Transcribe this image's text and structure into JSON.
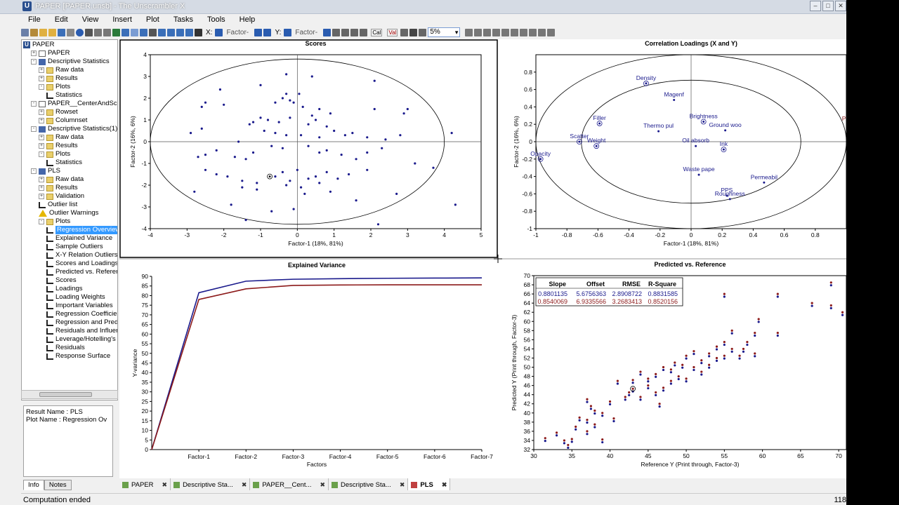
{
  "window": {
    "title": "PAPER [PAPER.unsb] - The Unscrambler X",
    "controls": [
      "–",
      "□",
      "✕"
    ]
  },
  "menu": [
    "File",
    "Edit",
    "View",
    "Insert",
    "Plot",
    "Tasks",
    "Tools",
    "Help"
  ],
  "toolbar": {
    "x_label": "X:",
    "x_value": "Factor-",
    "y_label": "Y:",
    "y_value": "Factor-",
    "zoom": "5%",
    "cal": "Cal",
    "val": "Val"
  },
  "tree": [
    {
      "label": "PAPER",
      "indent": 0,
      "icon": "u-icon",
      "exp": ""
    },
    {
      "label": "PAPER",
      "indent": 1,
      "icon": "doc",
      "exp": "+"
    },
    {
      "label": "Descriptive Statistics",
      "indent": 1,
      "icon": "stat",
      "exp": "-"
    },
    {
      "label": "Raw data",
      "indent": 2,
      "icon": "folder",
      "exp": "+"
    },
    {
      "label": "Results",
      "indent": 2,
      "icon": "folder",
      "exp": "+"
    },
    {
      "label": "Plots",
      "indent": 2,
      "icon": "folder",
      "exp": "-"
    },
    {
      "label": "Statistics",
      "indent": 3,
      "icon": "plot",
      "exp": ""
    },
    {
      "label": "PAPER__CenterAndScale",
      "indent": 1,
      "icon": "doc",
      "exp": "-"
    },
    {
      "label": "Rowset",
      "indent": 2,
      "icon": "folder",
      "exp": "+"
    },
    {
      "label": "Columnset",
      "indent": 2,
      "icon": "folder",
      "exp": "+"
    },
    {
      "label": "Descriptive Statistics(1)",
      "indent": 1,
      "icon": "stat",
      "exp": "-"
    },
    {
      "label": "Raw data",
      "indent": 2,
      "icon": "folder",
      "exp": "+"
    },
    {
      "label": "Results",
      "indent": 2,
      "icon": "folder",
      "exp": "+"
    },
    {
      "label": "Plots",
      "indent": 2,
      "icon": "folder",
      "exp": "-"
    },
    {
      "label": "Statistics",
      "indent": 3,
      "icon": "plot",
      "exp": ""
    },
    {
      "label": "PLS",
      "indent": 1,
      "icon": "stat",
      "exp": "-"
    },
    {
      "label": "Raw data",
      "indent": 2,
      "icon": "folder",
      "exp": "+"
    },
    {
      "label": "Results",
      "indent": 2,
      "icon": "folder",
      "exp": "+"
    },
    {
      "label": "Validation",
      "indent": 2,
      "icon": "folder",
      "exp": "+"
    },
    {
      "label": "Outlier list",
      "indent": 2,
      "icon": "plot",
      "exp": ""
    },
    {
      "label": "Outlier Warnings",
      "indent": 2,
      "icon": "warn",
      "exp": ""
    },
    {
      "label": "Plots",
      "indent": 2,
      "icon": "folder",
      "exp": "-"
    },
    {
      "label": "Regression Overview",
      "indent": 3,
      "icon": "plot",
      "exp": "",
      "selected": true
    },
    {
      "label": "Explained Variance",
      "indent": 3,
      "icon": "plot",
      "exp": ""
    },
    {
      "label": "Sample Outliers",
      "indent": 3,
      "icon": "plot",
      "exp": ""
    },
    {
      "label": "X-Y Relation Outliers",
      "indent": 3,
      "icon": "plot",
      "exp": ""
    },
    {
      "label": "Scores and Loadings",
      "indent": 3,
      "icon": "plot",
      "exp": ""
    },
    {
      "label": "Predicted vs. Reference",
      "indent": 3,
      "icon": "plot",
      "exp": ""
    },
    {
      "label": "Scores",
      "indent": 3,
      "icon": "plot",
      "exp": ""
    },
    {
      "label": "Loadings",
      "indent": 3,
      "icon": "plot",
      "exp": ""
    },
    {
      "label": "Loading Weights",
      "indent": 3,
      "icon": "plot",
      "exp": ""
    },
    {
      "label": "Important Variables",
      "indent": 3,
      "icon": "plot",
      "exp": ""
    },
    {
      "label": "Regression Coefficients",
      "indent": 3,
      "icon": "plot",
      "exp": ""
    },
    {
      "label": "Regression and Prediction",
      "indent": 3,
      "icon": "plot",
      "exp": ""
    },
    {
      "label": "Residuals and Influence",
      "indent": 3,
      "icon": "plot",
      "exp": ""
    },
    {
      "label": "Leverage/Hotelling's",
      "indent": 3,
      "icon": "plot",
      "exp": ""
    },
    {
      "label": "Residuals",
      "indent": 3,
      "icon": "plot",
      "exp": ""
    },
    {
      "label": "Response Surface",
      "indent": 3,
      "icon": "plot",
      "exp": ""
    }
  ],
  "info": {
    "result_name": "Result Name : PLS",
    "plot_name": "Plot Name : Regression Ov",
    "tabs": [
      "Info",
      "Notes"
    ]
  },
  "doc_tabs": [
    {
      "label": "PAPER",
      "active": false
    },
    {
      "label": "Descriptive Sta...",
      "active": false
    },
    {
      "label": "PAPER__Cent...",
      "active": false
    },
    {
      "label": "Descriptive Sta...",
      "active": false
    },
    {
      "label": "PLS",
      "active": true
    }
  ],
  "status": {
    "left": "Computation ended",
    "right": "118"
  },
  "chart_data": [
    {
      "type": "scatter",
      "title": "Scores",
      "xlabel": "Factor-1 (18%, 81%)",
      "ylabel": "Factor-2 (16%, 6%)",
      "xlim": [
        -4,
        5
      ],
      "ylim": [
        -4,
        4
      ],
      "xticks": [
        -4,
        -3,
        -2,
        -1,
        0,
        1,
        2,
        3,
        4,
        5
      ],
      "yticks": [
        -4,
        -3,
        -2,
        -1,
        0,
        1,
        2,
        3,
        4
      ],
      "ellipse": {
        "rx": 4.0,
        "ry": 3.8
      },
      "highlight": [
        [
          -0.75,
          -1.6
        ]
      ],
      "points": [
        [
          -0.3,
          3.1
        ],
        [
          0.4,
          3.0
        ],
        [
          2.1,
          2.8
        ],
        [
          -2.1,
          2.4
        ],
        [
          -1.0,
          2.6
        ],
        [
          -2.5,
          1.8
        ],
        [
          -2.6,
          1.6
        ],
        [
          -2.0,
          1.7
        ],
        [
          -0.3,
          2.2
        ],
        [
          -0.6,
          1.8
        ],
        [
          -0.2,
          1.9
        ],
        [
          0.05,
          2.2
        ],
        [
          -0.4,
          2.0
        ],
        [
          -0.1,
          1.8
        ],
        [
          0.15,
          1.6
        ],
        [
          0.6,
          1.5
        ],
        [
          0.9,
          1.3
        ],
        [
          2.1,
          1.5
        ],
        [
          2.9,
          1.3
        ],
        [
          3.0,
          1.5
        ],
        [
          -1.0,
          1.1
        ],
        [
          -1.2,
          0.9
        ],
        [
          -1.3,
          0.8
        ],
        [
          -0.8,
          1.0
        ],
        [
          -0.5,
          0.9
        ],
        [
          -0.2,
          1.1
        ],
        [
          0.3,
          0.8
        ],
        [
          0.4,
          1.2
        ],
        [
          0.5,
          1.0
        ],
        [
          0.8,
          0.7
        ],
        [
          -2.6,
          0.6
        ],
        [
          -2.9,
          0.4
        ],
        [
          -0.9,
          0.5
        ],
        [
          -0.6,
          0.4
        ],
        [
          -0.3,
          0.3
        ],
        [
          0.1,
          0.3
        ],
        [
          0.6,
          0.2
        ],
        [
          1.0,
          0.5
        ],
        [
          1.3,
          0.3
        ],
        [
          1.5,
          0.4
        ],
        [
          1.9,
          0.2
        ],
        [
          2.4,
          0.1
        ],
        [
          2.8,
          0.3
        ],
        [
          4.2,
          0.4
        ],
        [
          -1.6,
          0.0
        ],
        [
          -1.2,
          -0.5
        ],
        [
          -1.7,
          -0.7
        ],
        [
          -1.4,
          -0.8
        ],
        [
          -2.2,
          -0.4
        ],
        [
          -2.5,
          -0.6
        ],
        [
          -2.7,
          -0.7
        ],
        [
          -0.7,
          -0.2
        ],
        [
          -0.4,
          -0.3
        ],
        [
          0.3,
          -0.2
        ],
        [
          0.6,
          -0.5
        ],
        [
          0.8,
          -0.4
        ],
        [
          1.2,
          -0.6
        ],
        [
          1.6,
          -0.8
        ],
        [
          1.9,
          -0.5
        ],
        [
          2.3,
          -0.3
        ],
        [
          3.2,
          -1.0
        ],
        [
          -2.5,
          -1.3
        ],
        [
          -2.2,
          -1.5
        ],
        [
          -1.9,
          -1.6
        ],
        [
          -1.5,
          -1.8
        ],
        [
          -1.1,
          -1.9
        ],
        [
          -0.6,
          -1.6
        ],
        [
          -0.4,
          -1.4
        ],
        [
          -0.2,
          -1.8
        ],
        [
          0.0,
          -1.3
        ],
        [
          0.3,
          -1.7
        ],
        [
          0.5,
          -1.6
        ],
        [
          0.6,
          -1.9
        ],
        [
          0.1,
          -2.1
        ],
        [
          0.8,
          -1.4
        ],
        [
          1.1,
          -1.7
        ],
        [
          1.4,
          -1.5
        ],
        [
          1.9,
          -1.3
        ],
        [
          -2.8,
          -2.3
        ],
        [
          -1.5,
          -2.1
        ],
        [
          -1.1,
          -2.2
        ],
        [
          -0.3,
          -2.0
        ],
        [
          0.2,
          -2.4
        ],
        [
          0.9,
          -2.3
        ],
        [
          1.6,
          -2.7
        ],
        [
          2.7,
          -2.4
        ],
        [
          3.7,
          -1.2
        ],
        [
          4.3,
          -2.9
        ],
        [
          -1.8,
          -2.9
        ],
        [
          -1.4,
          -3.6
        ],
        [
          2.2,
          -3.8
        ],
        [
          -0.7,
          -3.2
        ],
        [
          -0.1,
          -3.1
        ]
      ]
    },
    {
      "type": "scatter",
      "title": "Correlation Loadings (X and Y)",
      "xlabel": "Factor-1 (18%, 81%)",
      "ylabel": "Factor-2 (16%, 6%)",
      "xlim": [
        -1,
        1
      ],
      "ylim": [
        -1,
        1
      ],
      "xticks": [
        -1,
        -0.8,
        -0.6,
        -0.4,
        -0.2,
        0,
        0.2,
        0.4,
        0.6,
        0.8
      ],
      "yticks": [
        -1,
        -0.8,
        -0.6,
        -0.4,
        -0.2,
        0,
        0.2,
        0.4,
        0.6,
        0.8
      ],
      "labels": [
        {
          "name": "Density",
          "x": -0.29,
          "y": 0.67,
          "ring": true
        },
        {
          "name": "Magenf",
          "x": -0.11,
          "y": 0.48,
          "ring": false
        },
        {
          "name": "Filler",
          "x": -0.59,
          "y": 0.21,
          "ring": true
        },
        {
          "name": "Thermo pul",
          "x": -0.21,
          "y": 0.12,
          "ring": false
        },
        {
          "name": "Brightness",
          "x": 0.08,
          "y": 0.23,
          "ring": true
        },
        {
          "name": "Ground woo",
          "x": 0.22,
          "y": 0.13,
          "ring": false
        },
        {
          "name": "Scatter",
          "x": -0.72,
          "y": 0.0,
          "ring": true
        },
        {
          "name": "Weight",
          "x": -0.61,
          "y": -0.05,
          "ring": true
        },
        {
          "name": "Oil absorb",
          "x": 0.03,
          "y": -0.05,
          "ring": false
        },
        {
          "name": "Ink",
          "x": 0.21,
          "y": -0.09,
          "ring": true
        },
        {
          "name": "Opacity",
          "x": -0.97,
          "y": -0.2,
          "ring": true
        },
        {
          "name": "Waste pape",
          "x": 0.05,
          "y": -0.38,
          "ring": false
        },
        {
          "name": "Permeabil",
          "x": 0.47,
          "y": -0.47,
          "ring": false
        },
        {
          "name": "PPS",
          "x": 0.23,
          "y": -0.62,
          "ring": false
        },
        {
          "name": "Roughness",
          "x": 0.25,
          "y": -0.66,
          "ring": false
        },
        {
          "name": "Print thro",
          "x": 1.05,
          "y": 0.2,
          "ring": false
        }
      ]
    },
    {
      "type": "line",
      "title": "Explained Variance",
      "xlabel": "Factors",
      "ylabel": "Y-variance",
      "categories": [
        "",
        "Factor-1",
        "Factor-2",
        "Factor-3",
        "Factor-4",
        "Factor-5",
        "Factor-6",
        "Factor-7"
      ],
      "ylim": [
        0,
        90
      ],
      "yticks": [
        0,
        5,
        10,
        15,
        20,
        25,
        30,
        35,
        40,
        45,
        50,
        55,
        60,
        65,
        70,
        75,
        80,
        85,
        90
      ],
      "series": [
        {
          "color": "#1a1a8c",
          "values": [
            0,
            81.5,
            87.5,
            88.5,
            88.8,
            89.0,
            89.1,
            89.2
          ]
        },
        {
          "color": "#8c1a1a",
          "values": [
            0,
            78.0,
            83.5,
            85.3,
            85.5,
            85.6,
            85.6,
            85.6
          ]
        }
      ]
    },
    {
      "type": "scatter",
      "title": "Predicted vs. Reference",
      "xlabel": "Reference Y (Print through, Factor-3)",
      "ylabel": "Predicted Y (Print through, Factor-3)",
      "xlim": [
        30,
        71
      ],
      "ylim": [
        32,
        70
      ],
      "xticks": [
        30,
        35,
        40,
        45,
        50,
        55,
        60,
        65,
        70
      ],
      "yticks": [
        32,
        34,
        36,
        38,
        40,
        42,
        44,
        46,
        48,
        50,
        52,
        54,
        56,
        58,
        60,
        62,
        64,
        66,
        68,
        70
      ],
      "table": {
        "headers": [
          "Slope",
          "Offset",
          "RMSE",
          "R-Square"
        ],
        "rows": [
          {
            "color": "#1a1a8c",
            "values": [
              "0.8801135",
              "5.6756363",
              "2.8908722",
              "0.8831585"
            ]
          },
          {
            "color": "#8c1a1a",
            "values": [
              "0.8540069",
              "6.9335566",
              "3.2683413",
              "0.8520156"
            ]
          }
        ]
      },
      "highlight": [
        [
          43,
          45.3
        ]
      ],
      "points": [
        [
          31.5,
          34.5
        ],
        [
          33,
          35.7
        ],
        [
          34,
          34.0
        ],
        [
          34.5,
          33.0
        ],
        [
          35,
          34.3
        ],
        [
          35.5,
          37.0
        ],
        [
          36,
          39.0
        ],
        [
          37,
          36.0
        ],
        [
          37,
          38.5
        ],
        [
          37.5,
          41.5
        ],
        [
          37,
          43.0
        ],
        [
          38,
          37.5
        ],
        [
          38,
          40.5
        ],
        [
          39,
          34.2
        ],
        [
          39,
          40.0
        ],
        [
          40,
          42.5
        ],
        [
          40.5,
          38.8
        ],
        [
          41,
          47.0
        ],
        [
          42,
          43.5
        ],
        [
          42.5,
          44.5
        ],
        [
          43,
          45.3
        ],
        [
          43,
          47.2
        ],
        [
          44,
          43.5
        ],
        [
          44,
          49.0
        ],
        [
          45,
          46.0
        ],
        [
          45,
          47.5
        ],
        [
          46,
          48.5
        ],
        [
          46,
          44.5
        ],
        [
          46.5,
          42.0
        ],
        [
          47,
          45.5
        ],
        [
          47,
          50.0
        ],
        [
          48,
          47.0
        ],
        [
          48,
          49.5
        ],
        [
          48.5,
          51.0
        ],
        [
          49,
          48.0
        ],
        [
          49.5,
          50.5
        ],
        [
          50,
          47.5
        ],
        [
          50,
          52.5
        ],
        [
          51,
          50.0
        ],
        [
          51,
          53.5
        ],
        [
          52,
          51.5
        ],
        [
          52,
          49.0
        ],
        [
          53,
          53.0
        ],
        [
          53,
          50.5
        ],
        [
          54,
          52.0
        ],
        [
          54,
          54.5
        ],
        [
          55,
          55.5
        ],
        [
          55,
          52.5
        ],
        [
          55,
          66.0
        ],
        [
          56,
          54.0
        ],
        [
          56,
          58.0
        ],
        [
          57,
          52.5
        ],
        [
          57.5,
          54.0
        ],
        [
          58,
          55.5
        ],
        [
          59,
          53.0
        ],
        [
          59,
          57.5
        ],
        [
          59.5,
          60.5
        ],
        [
          62,
          57.5
        ],
        [
          62,
          66.0
        ],
        [
          66.5,
          64.0
        ],
        [
          69,
          63.5
        ],
        [
          69,
          68.5
        ],
        [
          70.5,
          62.0
        ]
      ]
    }
  ]
}
